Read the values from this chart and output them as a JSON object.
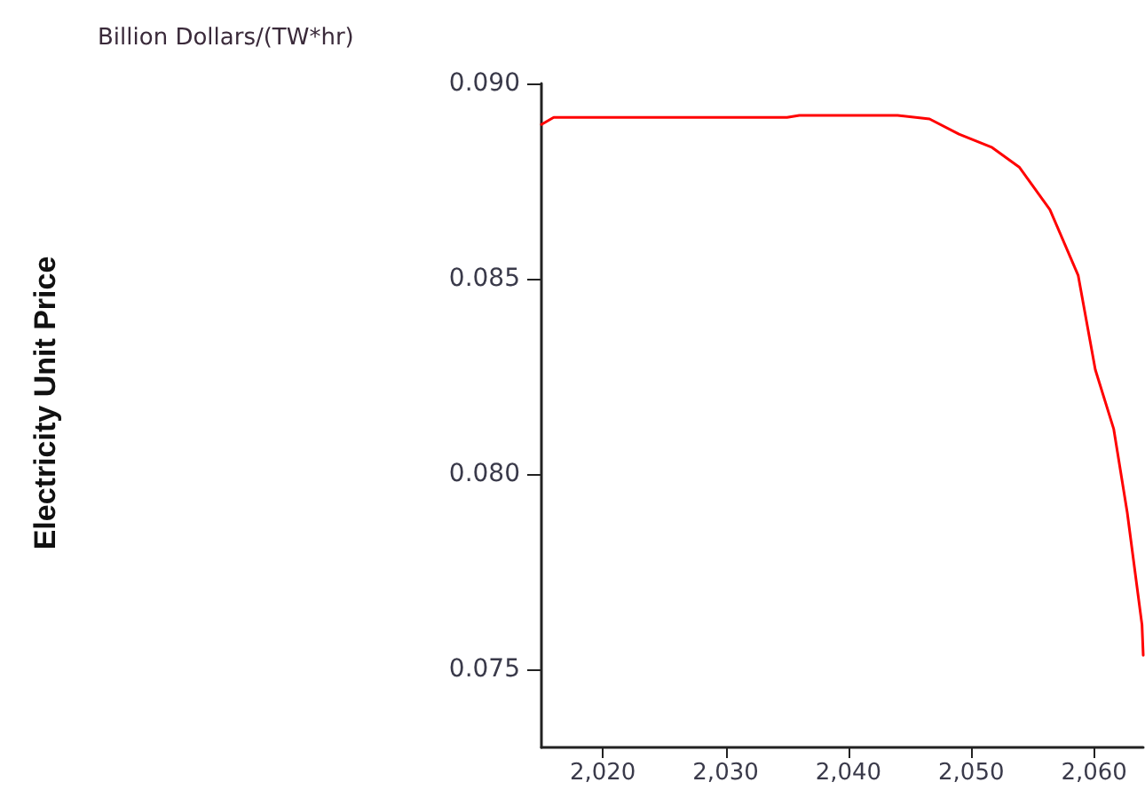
{
  "chart_data": {
    "type": "line",
    "title": "Billion Dollars/(TW*hr)",
    "annotations": [
      "Electricity Unit Price"
    ],
    "xlim": [
      2015,
      2064
    ],
    "ylim": [
      0.073,
      0.09
    ],
    "xticks": [
      {
        "value": 2020,
        "label": "2,020"
      },
      {
        "value": 2030,
        "label": "2,030"
      },
      {
        "value": 2040,
        "label": "2,040"
      },
      {
        "value": 2050,
        "label": "2,050"
      },
      {
        "value": 2060,
        "label": "2,060"
      }
    ],
    "yticks": [
      {
        "value": 0.075,
        "label": "0.075"
      },
      {
        "value": 0.08,
        "label": "0.080"
      },
      {
        "value": 0.085,
        "label": "0.085"
      },
      {
        "value": 0.09,
        "label": "0.090"
      }
    ],
    "grid": false,
    "marker": "none",
    "line_style": "solid",
    "series": [
      {
        "color": "#ff0000",
        "x": [
          2015,
          2016,
          2020,
          2025,
          2030,
          2035,
          2036,
          2040,
          2044,
          2046.6,
          2049,
          2051.7,
          2053.9,
          2056.4,
          2058.7,
          2060.1,
          2061.6,
          2062.7,
          2063.9,
          2064
        ],
        "values": [
          0.08895,
          0.08913,
          0.08913,
          0.08913,
          0.08913,
          0.08913,
          0.08918,
          0.08918,
          0.08918,
          0.08909,
          0.0887,
          0.08836,
          0.08786,
          0.08677,
          0.08509,
          0.08267,
          0.08115,
          0.07901,
          0.07614,
          0.07536
        ]
      }
    ]
  }
}
